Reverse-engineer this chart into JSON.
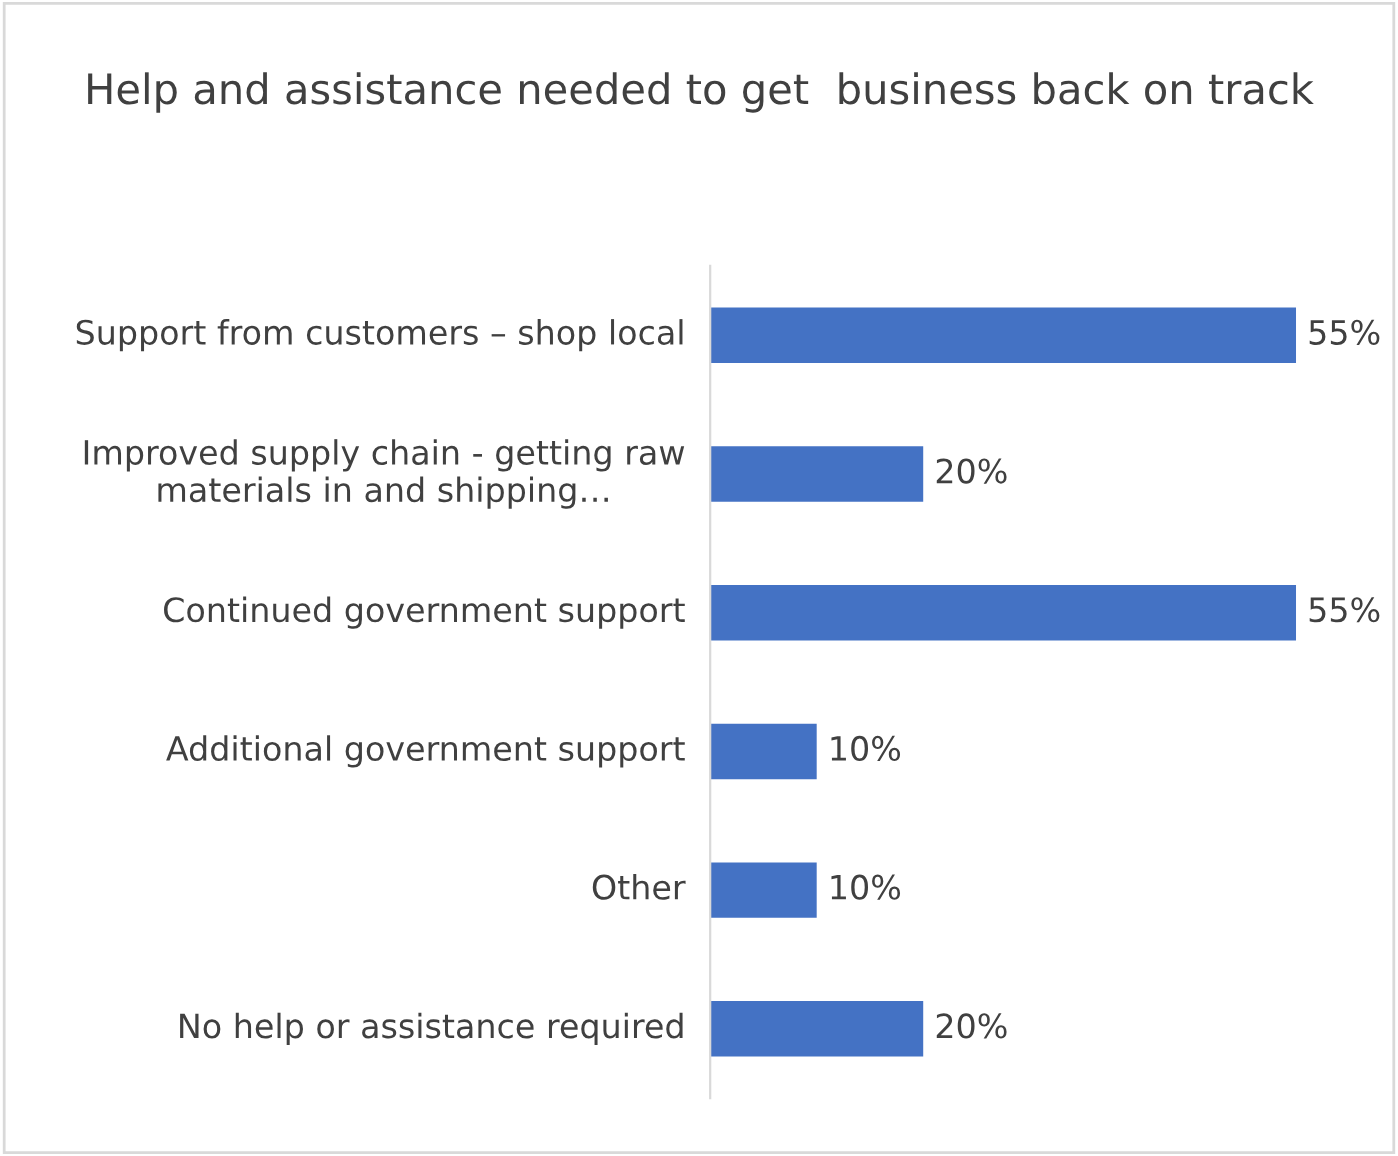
{
  "chart_data": {
    "type": "bar",
    "orientation": "horizontal",
    "title": "Help and assistance needed to get  business back on track",
    "categories": [
      "Support from customers – shop local",
      "Improved supply chain - getting raw materials in and shipping…",
      "Continued government support",
      "Additional government support",
      "Other",
      "No help or assistance required"
    ],
    "values": [
      55,
      20,
      55,
      10,
      10,
      20
    ],
    "value_labels": [
      "55%",
      "20%",
      "55%",
      "10%",
      "10%",
      "20%"
    ],
    "color": "#4472c4",
    "grid": false,
    "legend": false
  }
}
